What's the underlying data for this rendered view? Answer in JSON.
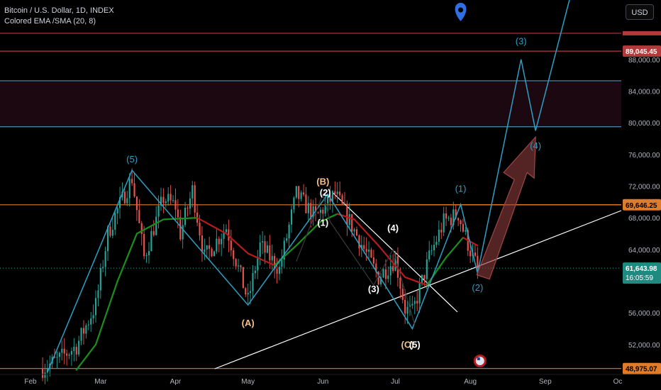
{
  "legend": {
    "symbol": "Bitcoin / U.S. Dollar, 1D, INDEX",
    "indicator": "Colored EMA /SMA (20, 8)"
  },
  "currency": "USD",
  "colors": {
    "background": "#000000",
    "up": "#26a69a",
    "down": "#ef5350",
    "ema_up": "#1b8f1b",
    "ema_down": "#b71c1c",
    "elliott_blue": "#2d9fc4",
    "elliott_white": "#ffffff",
    "elliott_orange": "#f6c08a",
    "level_red": "#b23a3a",
    "level_blue": "#4f8fb5",
    "arrow": "#8c3a3a"
  },
  "price_levels": {
    "level_89045": "89,045.45",
    "level_69646": "69,646.25",
    "level_current": "61,643.98",
    "countdown": "16:05:59",
    "level_48975": "48,975.07"
  },
  "chart_data": {
    "type": "candlestick",
    "symbol": "BTCUSD",
    "timeframe": "1D",
    "x_axis_labels": [
      "Feb",
      "Mar",
      "Apr",
      "May",
      "Jun",
      "Jul",
      "Aug",
      "Sep",
      "Oc"
    ],
    "y_axis_labels": [
      "88,000.00",
      "84,000.00",
      "80,000.00",
      "76,000.00",
      "72,000.00",
      "68,000.00",
      "64,000.00",
      "56,000.00",
      "52,000.00"
    ],
    "ylim": [
      48500,
      95500
    ],
    "highlighted_prices": [
      89045.45,
      69646.25,
      61643.98,
      48975.07
    ],
    "zone": {
      "from": 79500,
      "to": 85300
    },
    "horizontal_lines": [
      91300,
      89045.45,
      85300,
      79500,
      69646.25,
      48975.07
    ],
    "price_anchors": [
      {
        "date": "2024-02-06",
        "price": 49000
      },
      {
        "date": "2024-02-12",
        "price": 50000
      },
      {
        "date": "2024-02-20",
        "price": 51800
      },
      {
        "date": "2024-02-28",
        "price": 57000
      },
      {
        "date": "2024-03-04",
        "price": 66000
      },
      {
        "date": "2024-03-08",
        "price": 69000
      },
      {
        "date": "2024-03-14",
        "price": 73000
      },
      {
        "date": "2024-03-19",
        "price": 63000
      },
      {
        "date": "2024-03-27",
        "price": 70500
      },
      {
        "date": "2024-04-01",
        "price": 69500
      },
      {
        "date": "2024-04-03",
        "price": 66000
      },
      {
        "date": "2024-04-08",
        "price": 71500
      },
      {
        "date": "2024-04-13",
        "price": 63000
      },
      {
        "date": "2024-04-22",
        "price": 66800
      },
      {
        "date": "2024-05-01",
        "price": 57500
      },
      {
        "date": "2024-05-06",
        "price": 64500
      },
      {
        "date": "2024-05-14",
        "price": 61500
      },
      {
        "date": "2024-05-21",
        "price": 71000
      },
      {
        "date": "2024-05-29",
        "price": 68000
      },
      {
        "date": "2024-06-06",
        "price": 71000
      },
      {
        "date": "2024-06-13",
        "price": 67000
      },
      {
        "date": "2024-06-24",
        "price": 60500
      },
      {
        "date": "2024-07-01",
        "price": 62800
      },
      {
        "date": "2024-07-05",
        "price": 56500
      },
      {
        "date": "2024-07-08",
        "price": 56000
      },
      {
        "date": "2024-07-15",
        "price": 63000
      },
      {
        "date": "2024-07-21",
        "price": 67500
      },
      {
        "date": "2024-07-27",
        "price": 68500
      },
      {
        "date": "2024-07-29",
        "price": 66500
      },
      {
        "date": "2024-08-02",
        "price": 63000
      },
      {
        "date": "2024-08-04",
        "price": 61643.98
      }
    ],
    "ema_anchors": [
      {
        "date": "2024-02-20",
        "price": 48800
      },
      {
        "date": "2024-02-28",
        "price": 52000
      },
      {
        "date": "2024-03-08",
        "price": 60000
      },
      {
        "date": "2024-03-16",
        "price": 66000
      },
      {
        "date": "2024-03-27",
        "price": 67800
      },
      {
        "date": "2024-04-10",
        "price": 68000
      },
      {
        "date": "2024-04-22",
        "price": 66000
      },
      {
        "date": "2024-05-01",
        "price": 63500
      },
      {
        "date": "2024-05-12",
        "price": 62000
      },
      {
        "date": "2024-05-21",
        "price": 64500
      },
      {
        "date": "2024-05-31",
        "price": 67500
      },
      {
        "date": "2024-06-07",
        "price": 68500
      },
      {
        "date": "2024-06-14",
        "price": 67800
      },
      {
        "date": "2024-06-24",
        "price": 64500
      },
      {
        "date": "2024-07-05",
        "price": 60500
      },
      {
        "date": "2024-07-14",
        "price": 59500
      },
      {
        "date": "2024-07-22",
        "price": 63000
      },
      {
        "date": "2024-07-29",
        "price": 65500
      },
      {
        "date": "2024-08-04",
        "price": 64500
      }
    ],
    "elliott_labels": [
      {
        "text": "(5)",
        "date": "2024-03-14",
        "price": 75000,
        "color": "blue"
      },
      {
        "text": "(A)",
        "date": "2024-05-01",
        "price": 54300,
        "color": "orange"
      },
      {
        "text": "(B)",
        "date": "2024-06-01",
        "price": 72200,
        "color": "orange"
      },
      {
        "text": "(2)",
        "date": "2024-06-02",
        "price": 70800,
        "color": "white"
      },
      {
        "text": "(1)",
        "date": "2024-06-01",
        "price": 67000,
        "color": "white"
      },
      {
        "text": "(4)",
        "date": "2024-06-30",
        "price": 66300,
        "color": "white"
      },
      {
        "text": "(3)",
        "date": "2024-06-22",
        "price": 58600,
        "color": "white"
      },
      {
        "text": "(C)",
        "date": "2024-07-06",
        "price": 51600,
        "color": "orange"
      },
      {
        "text": "(5)",
        "date": "2024-07-09",
        "price": 51600,
        "color": "white"
      },
      {
        "text": "(1)",
        "date": "2024-07-28",
        "price": 71300,
        "color": "blue"
      },
      {
        "text": "(2)",
        "date": "2024-08-04",
        "price": 58800,
        "color": "blue"
      },
      {
        "text": "(3)",
        "date": "2024-08-22",
        "price": 89900,
        "color": "blue"
      },
      {
        "text": "(4)",
        "date": "2024-08-28",
        "price": 76700,
        "color": "blue"
      }
    ],
    "elliott_paths": [
      {
        "color": "blue",
        "points": [
          [
            "2024-02-08",
            48500
          ],
          [
            "2024-03-14",
            74000
          ],
          [
            "2024-05-01",
            57000
          ],
          [
            "2024-06-03",
            71000
          ],
          [
            "2024-07-08",
            54000
          ],
          [
            "2024-07-28",
            69700
          ],
          [
            "2024-08-04",
            61000
          ],
          [
            "2024-08-22",
            88000
          ],
          [
            "2024-08-28",
            79000
          ],
          [
            "2024-09-11",
            95500
          ]
        ]
      }
    ]
  }
}
